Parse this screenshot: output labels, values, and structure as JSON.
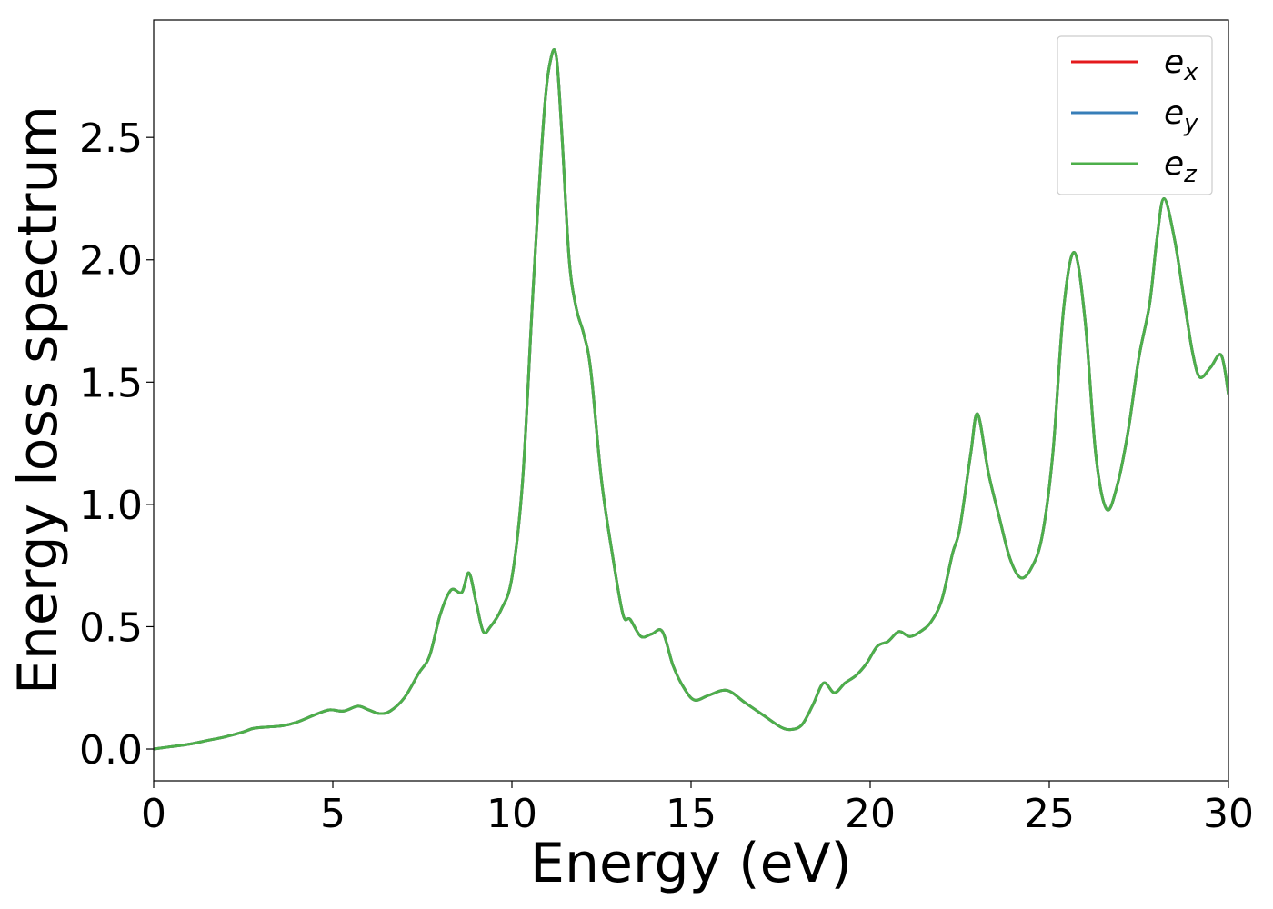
{
  "chart_data": {
    "type": "line",
    "title": "",
    "xlabel": "Energy (eV)",
    "ylabel": "Energy loss spectrum",
    "xlim": [
      0,
      30
    ],
    "ylim": [
      -0.13,
      2.98
    ],
    "xticks": [
      0,
      5,
      10,
      15,
      20,
      25,
      30
    ],
    "xtick_labels": [
      "0",
      "5",
      "10",
      "15",
      "20",
      "25",
      "30"
    ],
    "yticks": [
      0.0,
      0.5,
      1.0,
      1.5,
      2.0,
      2.5
    ],
    "ytick_labels": [
      "0.0",
      "0.5",
      "1.0",
      "1.5",
      "2.0",
      "2.5"
    ],
    "grid": false,
    "legend_position": "top-right",
    "x": [
      0.0,
      0.5,
      1.0,
      1.5,
      2.0,
      2.5,
      2.8,
      3.2,
      3.6,
      4.0,
      4.5,
      4.9,
      5.3,
      5.7,
      6.0,
      6.3,
      6.6,
      7.0,
      7.4,
      7.7,
      8.0,
      8.3,
      8.6,
      8.8,
      9.0,
      9.2,
      9.4,
      9.7,
      10.0,
      10.3,
      10.6,
      10.9,
      11.1,
      11.25,
      11.4,
      11.6,
      11.8,
      12.0,
      12.2,
      12.5,
      12.8,
      13.1,
      13.3,
      13.6,
      13.9,
      14.2,
      14.5,
      14.8,
      15.1,
      15.5,
      16.0,
      16.5,
      17.0,
      17.5,
      17.8,
      18.1,
      18.4,
      18.7,
      19.0,
      19.3,
      19.6,
      19.9,
      20.2,
      20.5,
      20.8,
      21.1,
      21.4,
      21.7,
      22.0,
      22.3,
      22.5,
      22.8,
      23.0,
      23.3,
      23.6,
      23.9,
      24.2,
      24.5,
      24.8,
      25.1,
      25.4,
      25.7,
      26.0,
      26.3,
      26.6,
      26.9,
      27.2,
      27.5,
      27.8,
      28.0,
      28.2,
      28.5,
      28.8,
      29.0,
      29.2,
      29.5,
      29.8,
      30.0
    ],
    "series": [
      {
        "name": "e_x",
        "color": "#e41a1c",
        "values": [
          0.0,
          0.01,
          0.02,
          0.035,
          0.05,
          0.07,
          0.085,
          0.09,
          0.095,
          0.11,
          0.14,
          0.16,
          0.155,
          0.175,
          0.16,
          0.145,
          0.155,
          0.21,
          0.31,
          0.38,
          0.55,
          0.65,
          0.64,
          0.72,
          0.6,
          0.48,
          0.5,
          0.57,
          0.7,
          1.1,
          1.9,
          2.6,
          2.83,
          2.82,
          2.5,
          2.0,
          1.8,
          1.7,
          1.55,
          1.1,
          0.8,
          0.55,
          0.53,
          0.46,
          0.47,
          0.48,
          0.34,
          0.25,
          0.2,
          0.22,
          0.24,
          0.19,
          0.14,
          0.09,
          0.08,
          0.1,
          0.18,
          0.27,
          0.23,
          0.27,
          0.3,
          0.35,
          0.42,
          0.44,
          0.48,
          0.46,
          0.48,
          0.52,
          0.61,
          0.8,
          0.9,
          1.2,
          1.37,
          1.13,
          0.95,
          0.78,
          0.7,
          0.74,
          0.87,
          1.21,
          1.8,
          2.03,
          1.75,
          1.2,
          0.98,
          1.08,
          1.3,
          1.6,
          1.82,
          2.08,
          2.25,
          2.08,
          1.8,
          1.62,
          1.52,
          1.56,
          1.61,
          1.45
        ]
      },
      {
        "name": "e_y",
        "color": "#377eb8",
        "values": [
          0.0,
          0.01,
          0.02,
          0.035,
          0.05,
          0.07,
          0.085,
          0.09,
          0.095,
          0.11,
          0.14,
          0.16,
          0.155,
          0.175,
          0.16,
          0.145,
          0.155,
          0.21,
          0.31,
          0.38,
          0.55,
          0.65,
          0.64,
          0.72,
          0.6,
          0.48,
          0.5,
          0.57,
          0.7,
          1.1,
          1.9,
          2.6,
          2.83,
          2.82,
          2.5,
          2.0,
          1.8,
          1.7,
          1.55,
          1.1,
          0.8,
          0.55,
          0.53,
          0.46,
          0.47,
          0.48,
          0.34,
          0.25,
          0.2,
          0.22,
          0.24,
          0.19,
          0.14,
          0.09,
          0.08,
          0.1,
          0.18,
          0.27,
          0.23,
          0.27,
          0.3,
          0.35,
          0.42,
          0.44,
          0.48,
          0.46,
          0.48,
          0.52,
          0.61,
          0.8,
          0.9,
          1.2,
          1.37,
          1.13,
          0.95,
          0.78,
          0.7,
          0.74,
          0.87,
          1.21,
          1.8,
          2.03,
          1.75,
          1.2,
          0.98,
          1.08,
          1.3,
          1.6,
          1.82,
          2.08,
          2.25,
          2.08,
          1.8,
          1.62,
          1.52,
          1.56,
          1.61,
          1.45
        ]
      },
      {
        "name": "e_z",
        "color": "#4daf4a",
        "values": [
          0.0,
          0.01,
          0.02,
          0.035,
          0.05,
          0.07,
          0.085,
          0.09,
          0.095,
          0.11,
          0.14,
          0.16,
          0.155,
          0.175,
          0.16,
          0.145,
          0.155,
          0.21,
          0.31,
          0.38,
          0.55,
          0.65,
          0.64,
          0.72,
          0.6,
          0.48,
          0.5,
          0.57,
          0.7,
          1.1,
          1.9,
          2.6,
          2.83,
          2.82,
          2.5,
          2.0,
          1.8,
          1.7,
          1.55,
          1.1,
          0.8,
          0.55,
          0.53,
          0.46,
          0.47,
          0.48,
          0.34,
          0.25,
          0.2,
          0.22,
          0.24,
          0.19,
          0.14,
          0.09,
          0.08,
          0.1,
          0.18,
          0.27,
          0.23,
          0.27,
          0.3,
          0.35,
          0.42,
          0.44,
          0.48,
          0.46,
          0.48,
          0.52,
          0.61,
          0.8,
          0.9,
          1.2,
          1.37,
          1.13,
          0.95,
          0.78,
          0.7,
          0.74,
          0.87,
          1.21,
          1.8,
          2.03,
          1.75,
          1.2,
          0.98,
          1.08,
          1.3,
          1.6,
          1.82,
          2.08,
          2.25,
          2.08,
          1.8,
          1.62,
          1.52,
          1.56,
          1.61,
          1.45
        ]
      }
    ],
    "legend": [
      {
        "base": "e",
        "sub": "x",
        "color": "#e41a1c"
      },
      {
        "base": "e",
        "sub": "y",
        "color": "#377eb8"
      },
      {
        "base": "e",
        "sub": "z",
        "color": "#4daf4a"
      }
    ]
  }
}
